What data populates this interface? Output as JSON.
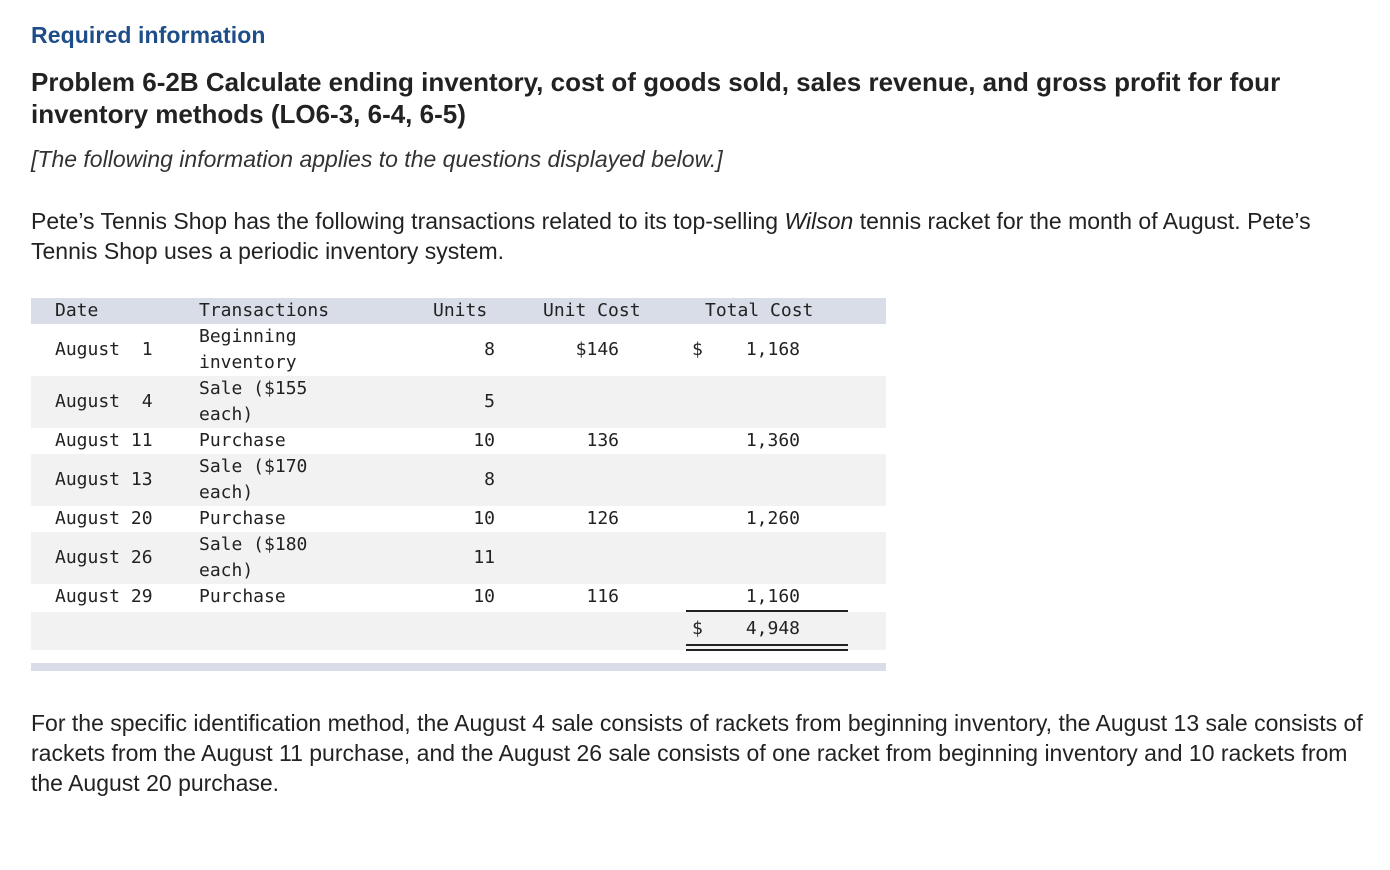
{
  "header": {
    "required_label": "Required information",
    "problem_title": "Problem 6-2B Calculate ending inventory, cost of goods sold, sales revenue, and gross profit for four inventory methods (LO6-3, 6-4, 6-5)",
    "applies_note": "[The following information applies to the questions displayed below.]"
  },
  "intro": {
    "part1": "Pete’s Tennis Shop has the following transactions related to its top-selling ",
    "brand": "Wilson",
    "part2": " tennis racket for the month of August. Pete’s Tennis Shop uses a periodic inventory system."
  },
  "table": {
    "columns": {
      "date": "Date",
      "transactions": "Transactions",
      "units": "Units",
      "unit_cost": "Unit Cost",
      "total_cost": "Total Cost"
    },
    "rows": [
      {
        "date": "August  1",
        "trans1": "Beginning",
        "trans2": "inventory",
        "units": "8",
        "unit_cost": "$146",
        "dollar": "$",
        "total": "1,168"
      },
      {
        "date": "August  4",
        "trans1": "Sale ($155",
        "trans2": "each)",
        "units": "5",
        "unit_cost": "",
        "dollar": "",
        "total": ""
      },
      {
        "date": "August 11",
        "trans1": "Purchase",
        "trans2": "",
        "units": "10",
        "unit_cost": "136",
        "dollar": "",
        "total": "1,360"
      },
      {
        "date": "August 13",
        "trans1": "Sale ($170",
        "trans2": "each)",
        "units": "8",
        "unit_cost": "",
        "dollar": "",
        "total": ""
      },
      {
        "date": "August 20",
        "trans1": "Purchase",
        "trans2": "",
        "units": "10",
        "unit_cost": "126",
        "dollar": "",
        "total": "1,260"
      },
      {
        "date": "August 26",
        "trans1": "Sale ($180",
        "trans2": "each)",
        "units": "11",
        "unit_cost": "",
        "dollar": "",
        "total": ""
      },
      {
        "date": "August 29",
        "trans1": "Purchase",
        "trans2": "",
        "units": "10",
        "unit_cost": "116",
        "dollar": "",
        "total": "1,160"
      }
    ],
    "total_row": {
      "dollar": "$",
      "total": "4,948"
    }
  },
  "followup": "For the specific identification method, the August 4 sale consists of rackets from beginning inventory, the August 13 sale consists of rackets from the August 11 purchase, and the August 26 sale consists of one racket from beginning inventory and 10 rackets from the August 20 purchase."
}
